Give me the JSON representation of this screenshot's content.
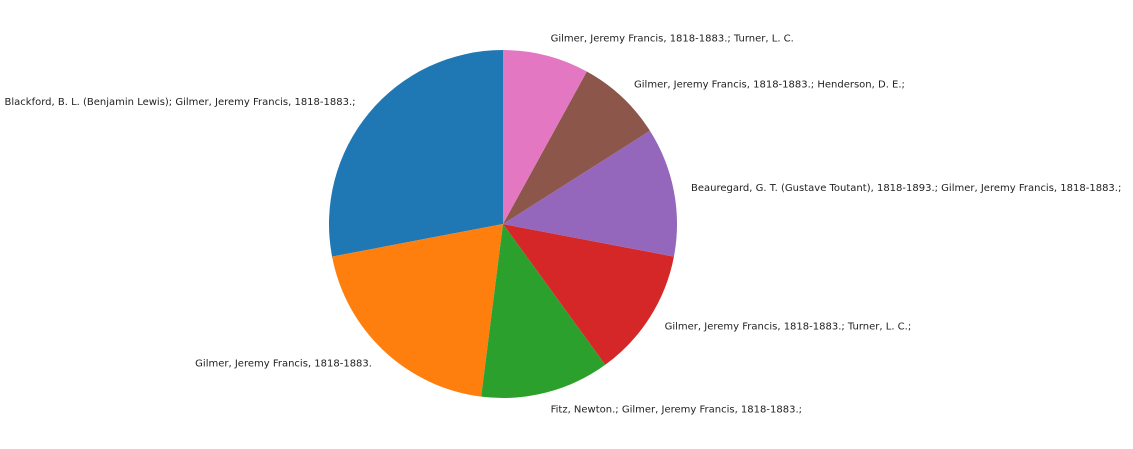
{
  "chart_data": {
    "type": "pie",
    "title": "",
    "start_angle_deg": 90,
    "direction": "counterclockwise",
    "slices": [
      {
        "label": "Blackford, B. L. (Benjamin Lewis); Gilmer, Jeremy Francis, 1818-1883.;",
        "value": 7,
        "color": "#1f77b4"
      },
      {
        "label": "Gilmer, Jeremy Francis, 1818-1883.",
        "value": 5,
        "color": "#ff7f0e"
      },
      {
        "label": "Fitz, Newton.; Gilmer, Jeremy Francis, 1818-1883.;",
        "value": 3,
        "color": "#2ca02c"
      },
      {
        "label": "Gilmer, Jeremy Francis, 1818-1883.; Turner, L. C.;",
        "value": 3,
        "color": "#d62728"
      },
      {
        "label": "Beauregard, G. T. (Gustave Toutant), 1818-1893.; Gilmer, Jeremy Francis, 1818-1883.;",
        "value": 3,
        "color": "#9467bd"
      },
      {
        "label": "Gilmer, Jeremy Francis, 1818-1883.; Henderson, D. E.;",
        "value": 2,
        "color": "#8c564b"
      },
      {
        "label": "Gilmer, Jeremy Francis, 1818-1883.; Turner, L. C.",
        "value": 2,
        "color": "#e377c2"
      }
    ]
  }
}
